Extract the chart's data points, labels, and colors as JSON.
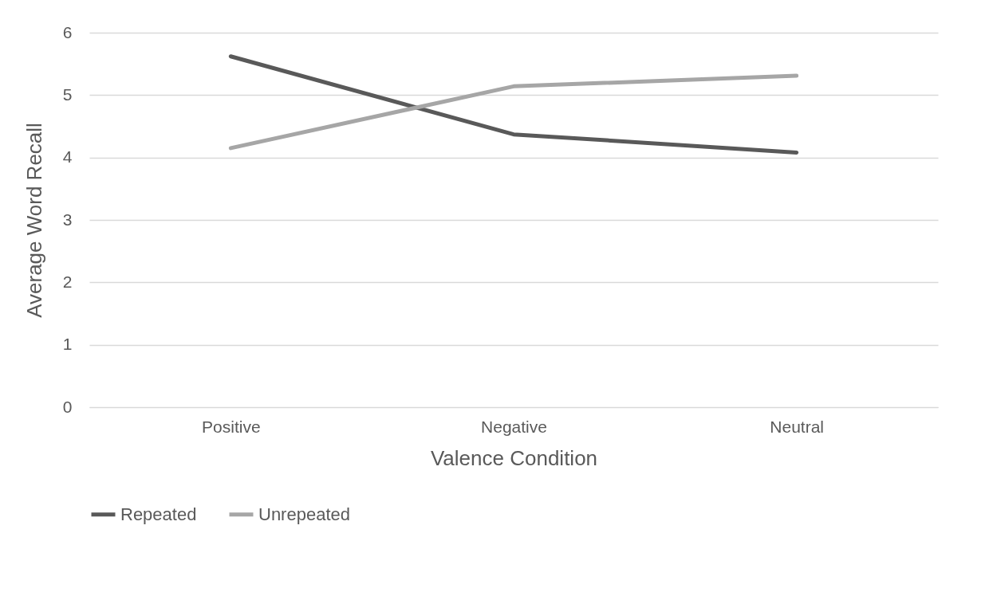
{
  "chart_data": {
    "type": "line",
    "xlabel": "Valence Condition",
    "ylabel": "Average Word Recall",
    "categories": [
      "Positive",
      "Negative",
      "Neutral"
    ],
    "series": [
      {
        "name": "Repeated",
        "color": "#595959",
        "values": [
          5.62,
          4.37,
          4.08
        ]
      },
      {
        "name": "Unrepeated",
        "color": "#a6a6a6",
        "values": [
          4.15,
          5.14,
          5.31
        ]
      }
    ],
    "ylim": [
      0,
      6
    ],
    "yticks": [
      0,
      1,
      2,
      3,
      4,
      5,
      6
    ],
    "grid": "y",
    "legend": "bottom",
    "marker": "none",
    "line_style": "solid"
  }
}
